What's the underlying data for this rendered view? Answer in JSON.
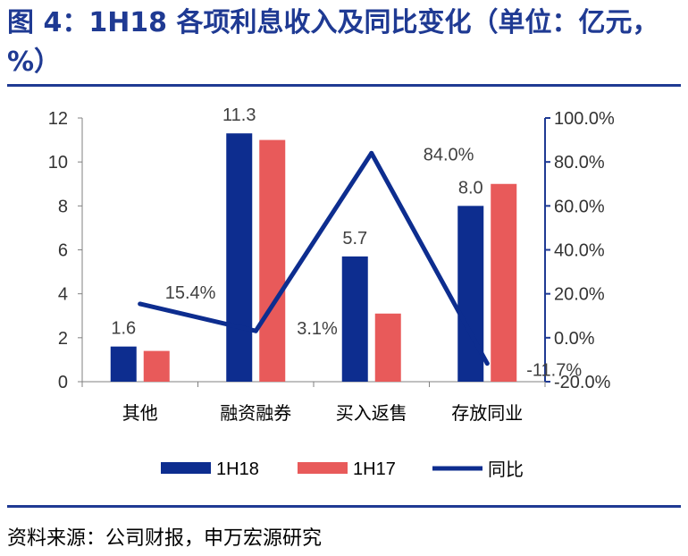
{
  "title": "图 4：1H18 各项利息收入及同比变化（单位：亿元，%）",
  "source": "资料来源：公司财报，申万宏源研究",
  "colors": {
    "series_1H18": "#0d2d8f",
    "series_1H17": "#e85a5a",
    "line_yoy": "#0d2d8f",
    "right_axis": "#1f3a93",
    "title": "#1f3a93"
  },
  "chart_data": {
    "type": "bar",
    "categories": [
      "其他",
      "融资融券",
      "买入返售",
      "存放同业"
    ],
    "series": [
      {
        "name": "1H18",
        "values": [
          1.6,
          11.3,
          5.7,
          8.0
        ],
        "labels": [
          "1.6",
          "11.3",
          "5.7",
          "8.0"
        ]
      },
      {
        "name": "1H17",
        "values": [
          1.4,
          11.0,
          3.1,
          9.0
        ]
      }
    ],
    "line_series": {
      "name": "同比",
      "values": [
        15.4,
        3.1,
        84.0,
        -11.7
      ],
      "labels": [
        "15.4%",
        "3.1%",
        "84.0%",
        "-11.7%"
      ]
    },
    "ylim": [
      0,
      12
    ],
    "y_ticks": [
      "0",
      "2",
      "4",
      "6",
      "8",
      "10",
      "12"
    ],
    "y2lim": [
      -20,
      100
    ],
    "y2_ticks": [
      "-20.0%",
      "0.0%",
      "20.0%",
      "40.0%",
      "60.0%",
      "80.0%",
      "100.0%"
    ],
    "legend": [
      "1H18",
      "1H17",
      "同比"
    ],
    "legend_position": "bottom",
    "grid": false
  }
}
